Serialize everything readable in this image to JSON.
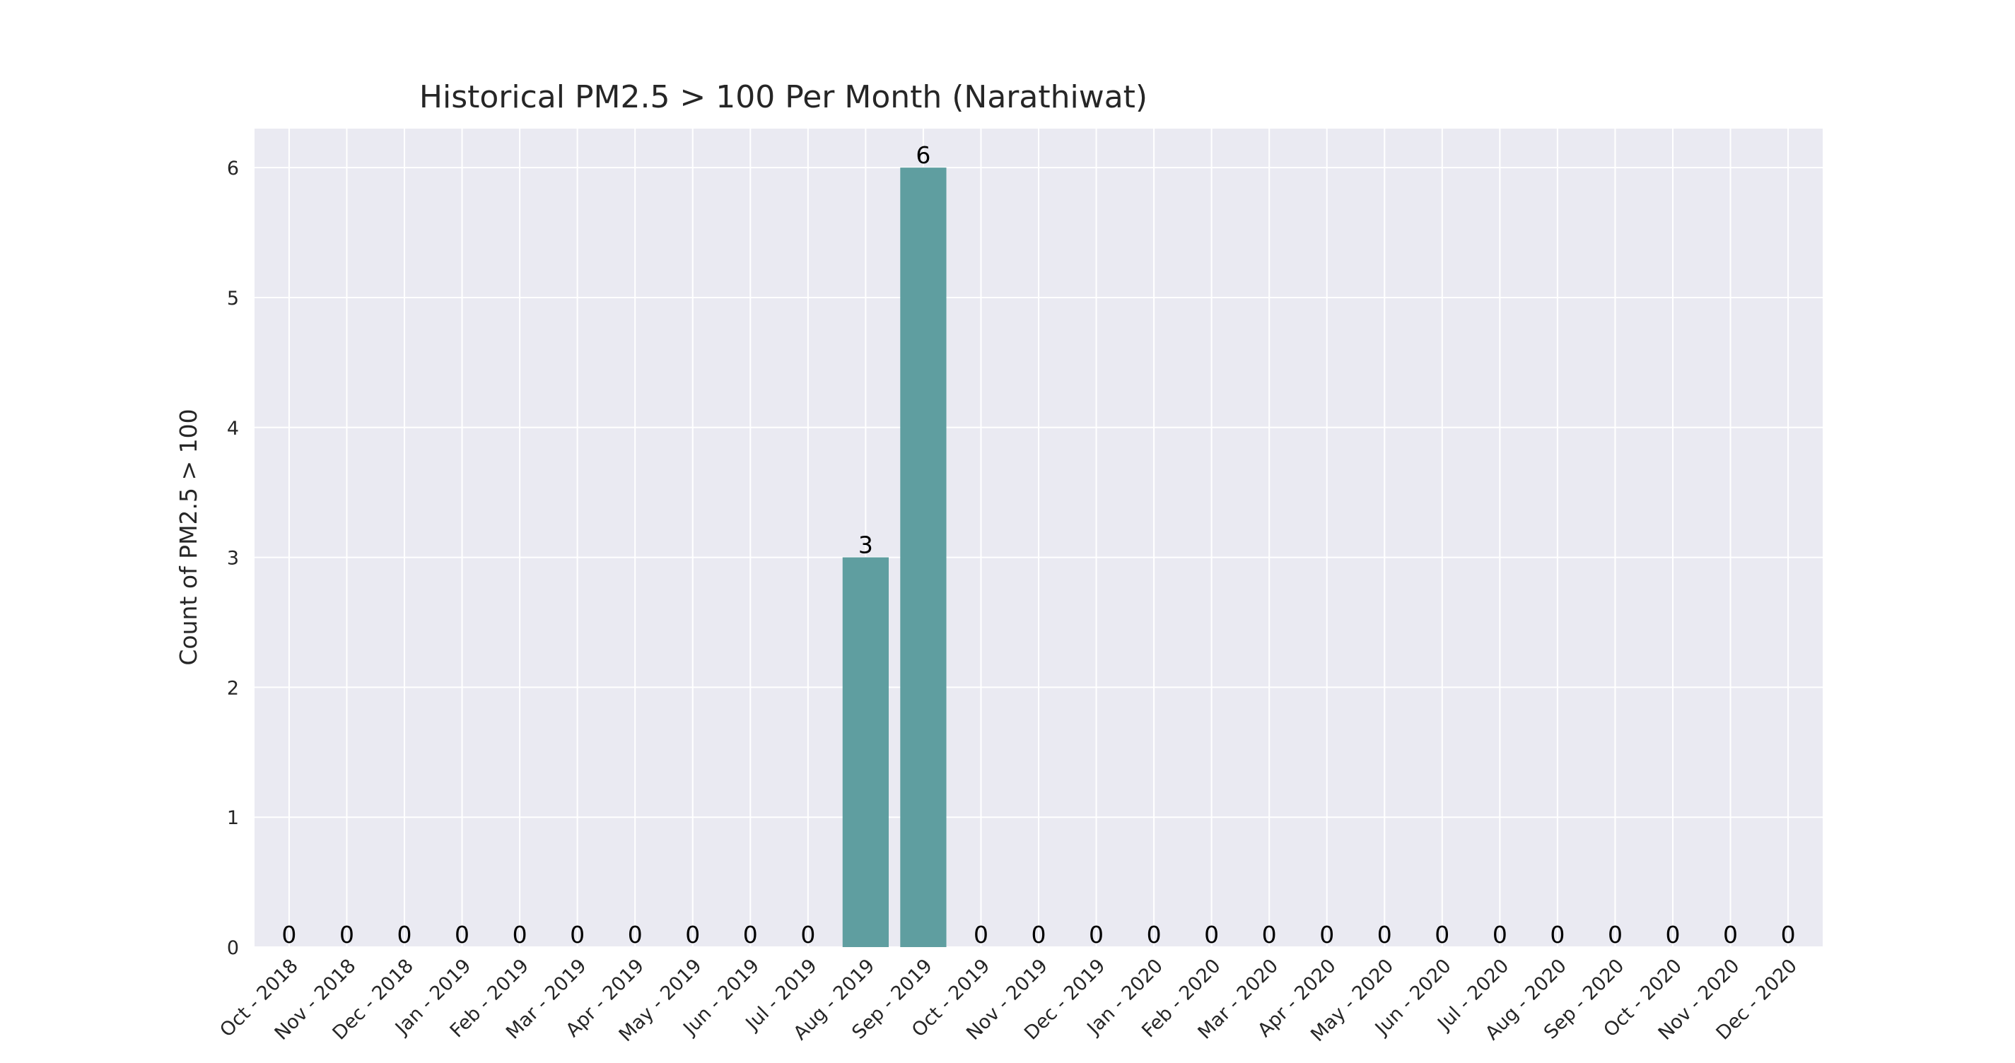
{
  "chart_data": {
    "type": "bar",
    "title": "Historical PM2.5 > 100 Per Month (Narathiwat)",
    "xlabel": "",
    "ylabel": "Count of PM2.5 > 100",
    "categories": [
      "Oct - 2018",
      "Nov - 2018",
      "Dec - 2018",
      "Jan - 2019",
      "Feb - 2019",
      "Mar - 2019",
      "Apr - 2019",
      "May - 2019",
      "Jun - 2019",
      "Jul - 2019",
      "Aug - 2019",
      "Sep - 2019",
      "Oct - 2019",
      "Nov - 2019",
      "Dec - 2019",
      "Jan - 2020",
      "Feb - 2020",
      "Mar - 2020",
      "Apr - 2020",
      "May - 2020",
      "Jun - 2020",
      "Jul - 2020",
      "Aug - 2020",
      "Sep - 2020",
      "Oct - 2020",
      "Nov - 2020",
      "Dec - 2020"
    ],
    "values": [
      0,
      0,
      0,
      0,
      0,
      0,
      0,
      0,
      0,
      0,
      3,
      6,
      0,
      0,
      0,
      0,
      0,
      0,
      0,
      0,
      0,
      0,
      0,
      0,
      0,
      0,
      0
    ],
    "yticks": [
      0,
      1,
      2,
      3,
      4,
      5,
      6
    ],
    "ylim": [
      0,
      6.3
    ],
    "grid": true,
    "legend": "none",
    "colors": {
      "bar": "#5f9ea0",
      "plot_background": "#eaeaf2",
      "grid": "#ffffff",
      "text": "#262626"
    }
  }
}
